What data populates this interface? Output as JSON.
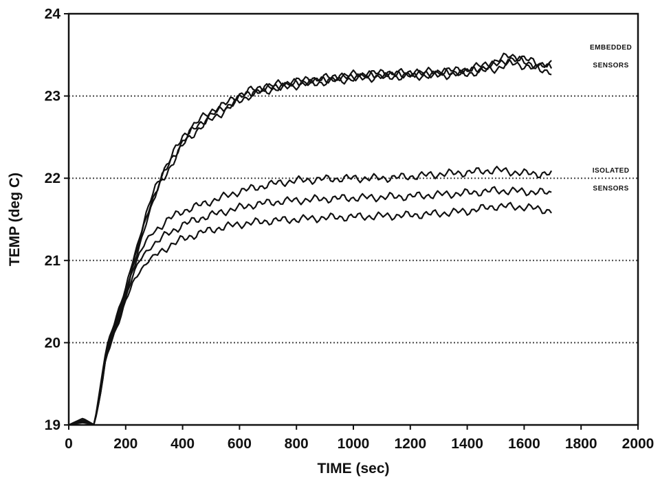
{
  "chart_data": {
    "type": "line",
    "title": "",
    "xlabel": "TIME (sec)",
    "ylabel": "TEMP (deg C)",
    "xlim": [
      0,
      2000
    ],
    "ylim": [
      19,
      24
    ],
    "x_ticks": [
      0,
      200,
      400,
      600,
      800,
      1000,
      1200,
      1400,
      1600,
      1800,
      2000
    ],
    "y_ticks": [
      19,
      20,
      21,
      22,
      23,
      24
    ],
    "grid": "horizontal dotted",
    "line_color": "#111111",
    "annotations": [
      {
        "lines": [
          "EMBEDDED",
          "SENSORS"
        ],
        "x": 1760,
        "y": 23.4
      },
      {
        "lines": [
          "ISOLATED",
          "SENSORS"
        ],
        "x": 1760,
        "y": 21.9
      }
    ],
    "series": [
      {
        "group": "embedded",
        "x": [
          0,
          50,
          90,
          110,
          130,
          150,
          175,
          200,
          225,
          250,
          275,
          300,
          325,
          350,
          375,
          400,
          425,
          450,
          475,
          500,
          550,
          600,
          650,
          700,
          800,
          900,
          1000,
          1100,
          1200,
          1300,
          1400,
          1500,
          1550,
          1600,
          1650,
          1700
        ],
        "y": [
          19.0,
          19.05,
          19.0,
          19.45,
          19.9,
          20.15,
          20.4,
          20.65,
          21.0,
          21.3,
          21.6,
          21.85,
          22.05,
          22.2,
          22.35,
          22.5,
          22.6,
          22.68,
          22.75,
          22.82,
          22.9,
          23.02,
          23.08,
          23.12,
          23.18,
          23.22,
          23.26,
          23.28,
          23.28,
          23.3,
          23.32,
          23.42,
          23.5,
          23.45,
          23.4,
          23.38
        ]
      },
      {
        "group": "embedded",
        "x": [
          0,
          50,
          90,
          110,
          130,
          150,
          175,
          200,
          225,
          250,
          275,
          300,
          325,
          350,
          375,
          400,
          425,
          450,
          475,
          500,
          550,
          600,
          650,
          700,
          800,
          900,
          1000,
          1100,
          1200,
          1300,
          1400,
          1500,
          1550,
          1600,
          1650,
          1700
        ],
        "y": [
          19.0,
          19.08,
          19.0,
          19.4,
          19.85,
          20.1,
          20.35,
          20.6,
          20.95,
          21.25,
          21.55,
          21.8,
          22.0,
          22.15,
          22.3,
          22.45,
          22.55,
          22.63,
          22.7,
          22.77,
          22.86,
          22.98,
          23.05,
          23.1,
          23.16,
          23.2,
          23.24,
          23.26,
          23.27,
          23.28,
          23.3,
          23.38,
          23.45,
          23.42,
          23.36,
          23.35
        ]
      },
      {
        "group": "embedded",
        "x": [
          0,
          50,
          90,
          110,
          130,
          150,
          175,
          200,
          225,
          250,
          275,
          300,
          325,
          350,
          375,
          400,
          425,
          450,
          475,
          500,
          550,
          600,
          650,
          700,
          800,
          900,
          1000,
          1100,
          1200,
          1300,
          1400,
          1500,
          1550,
          1600,
          1650,
          1700
        ],
        "y": [
          19.0,
          19.03,
          19.0,
          19.35,
          19.8,
          20.05,
          20.3,
          20.55,
          20.9,
          21.2,
          21.5,
          21.75,
          21.95,
          22.1,
          22.25,
          22.4,
          22.5,
          22.58,
          22.65,
          22.72,
          22.82,
          22.95,
          23.02,
          23.07,
          23.13,
          23.17,
          23.21,
          23.23,
          23.24,
          23.25,
          23.27,
          23.33,
          23.4,
          23.37,
          23.32,
          23.3
        ]
      },
      {
        "group": "isolated",
        "x": [
          0,
          50,
          90,
          110,
          130,
          150,
          175,
          200,
          225,
          250,
          275,
          300,
          350,
          400,
          450,
          500,
          550,
          600,
          650,
          700,
          750,
          800,
          900,
          1000,
          1100,
          1200,
          1300,
          1400,
          1500,
          1600,
          1700
        ],
        "y": [
          19.0,
          19.05,
          19.0,
          19.4,
          19.85,
          20.1,
          20.35,
          20.6,
          20.9,
          21.1,
          21.25,
          21.35,
          21.5,
          21.6,
          21.66,
          21.72,
          21.78,
          21.84,
          21.88,
          21.92,
          21.95,
          21.97,
          21.99,
          22.0,
          22.0,
          22.02,
          22.05,
          22.07,
          22.1,
          22.06,
          22.05
        ]
      },
      {
        "group": "isolated",
        "x": [
          0,
          50,
          90,
          110,
          130,
          150,
          175,
          200,
          225,
          250,
          275,
          300,
          350,
          400,
          450,
          500,
          550,
          600,
          650,
          700,
          750,
          800,
          900,
          1000,
          1100,
          1200,
          1300,
          1400,
          1500,
          1600,
          1700
        ],
        "y": [
          19.0,
          19.06,
          19.0,
          19.38,
          19.82,
          20.06,
          20.3,
          20.55,
          20.82,
          21.0,
          21.12,
          21.2,
          21.33,
          21.43,
          21.5,
          21.55,
          21.6,
          21.64,
          21.68,
          21.7,
          21.72,
          21.73,
          21.75,
          21.76,
          21.77,
          21.78,
          21.8,
          21.82,
          21.85,
          21.84,
          21.82
        ]
      },
      {
        "group": "isolated",
        "x": [
          0,
          50,
          90,
          110,
          130,
          150,
          175,
          200,
          225,
          250,
          275,
          300,
          350,
          400,
          450,
          500,
          550,
          600,
          650,
          700,
          750,
          800,
          900,
          1000,
          1100,
          1200,
          1300,
          1400,
          1500,
          1600,
          1700
        ],
        "y": [
          19.0,
          19.04,
          19.0,
          19.35,
          19.78,
          20.02,
          20.25,
          20.5,
          20.72,
          20.88,
          20.98,
          21.05,
          21.17,
          21.26,
          21.32,
          21.37,
          21.41,
          21.44,
          21.46,
          21.48,
          21.49,
          21.5,
          21.52,
          21.53,
          21.54,
          21.55,
          21.57,
          21.6,
          21.66,
          21.65,
          21.6
        ]
      }
    ]
  }
}
